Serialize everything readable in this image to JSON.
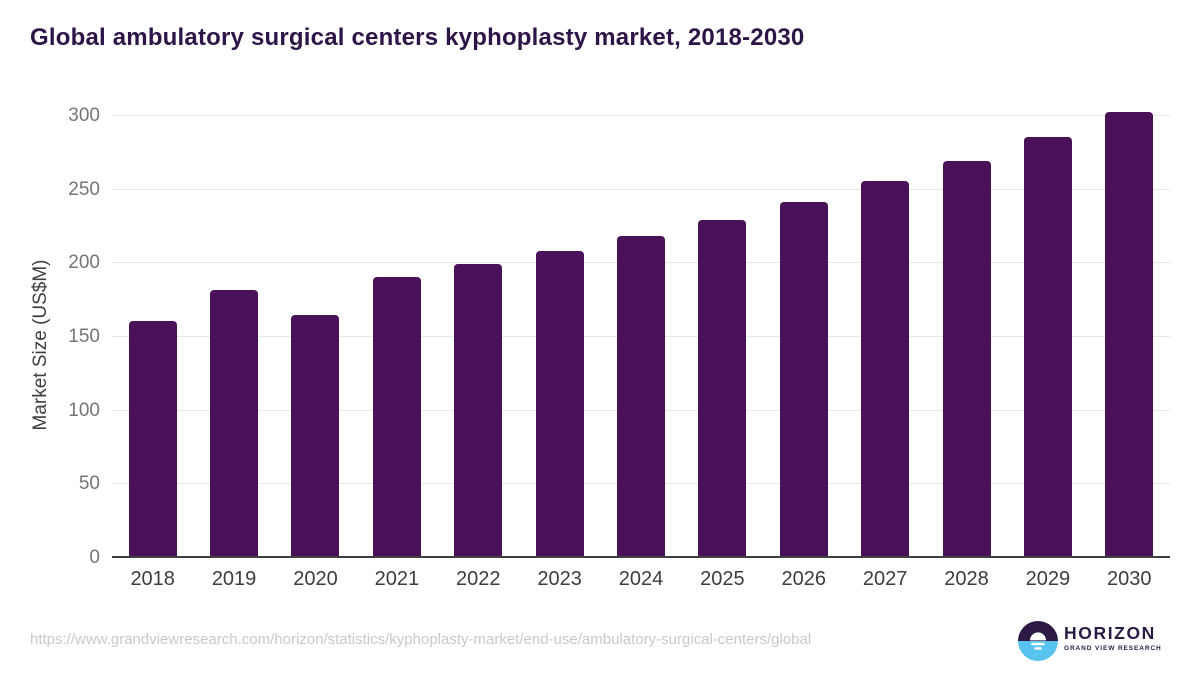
{
  "page": {
    "title": "Global ambulatory surgical centers kyphoplasty market, 2018-2030"
  },
  "chart_data": {
    "type": "bar",
    "title": "Global ambulatory surgical centers kyphoplasty market, 2018-2030",
    "categories": [
      "2018",
      "2019",
      "2020",
      "2021",
      "2022",
      "2023",
      "2024",
      "2025",
      "2026",
      "2027",
      "2028",
      "2029",
      "2030"
    ],
    "values": [
      160,
      181,
      164,
      190,
      199,
      208,
      218,
      229,
      241,
      255,
      269,
      285,
      302
    ],
    "xlabel": "",
    "ylabel": "Market Size (US$M)",
    "ylim": [
      0,
      300
    ],
    "yticks": [
      0,
      50,
      100,
      150,
      200,
      250,
      300
    ],
    "grid": true,
    "legend": false,
    "bar_color": "#4a1158"
  },
  "footer": {
    "source_url": "https://www.grandviewresearch.com/horizon/statistics/kyphoplasty-market/end-use/ambulatory-surgical-centers/global",
    "logo": {
      "title": "HORIZON",
      "subtitle": "GRAND VIEW RESEARCH"
    }
  },
  "colors": {
    "bar": "#4a1158",
    "title_text": "#2e1547",
    "axis_line": "#3f3f3f",
    "gridline": "#e7e7e7",
    "ytick_text": "#757575",
    "xtick_text": "#3d3d3d",
    "url_text": "#c9c9c9",
    "logo_purple": "#2c1a45",
    "logo_blue": "#59c3f0"
  }
}
